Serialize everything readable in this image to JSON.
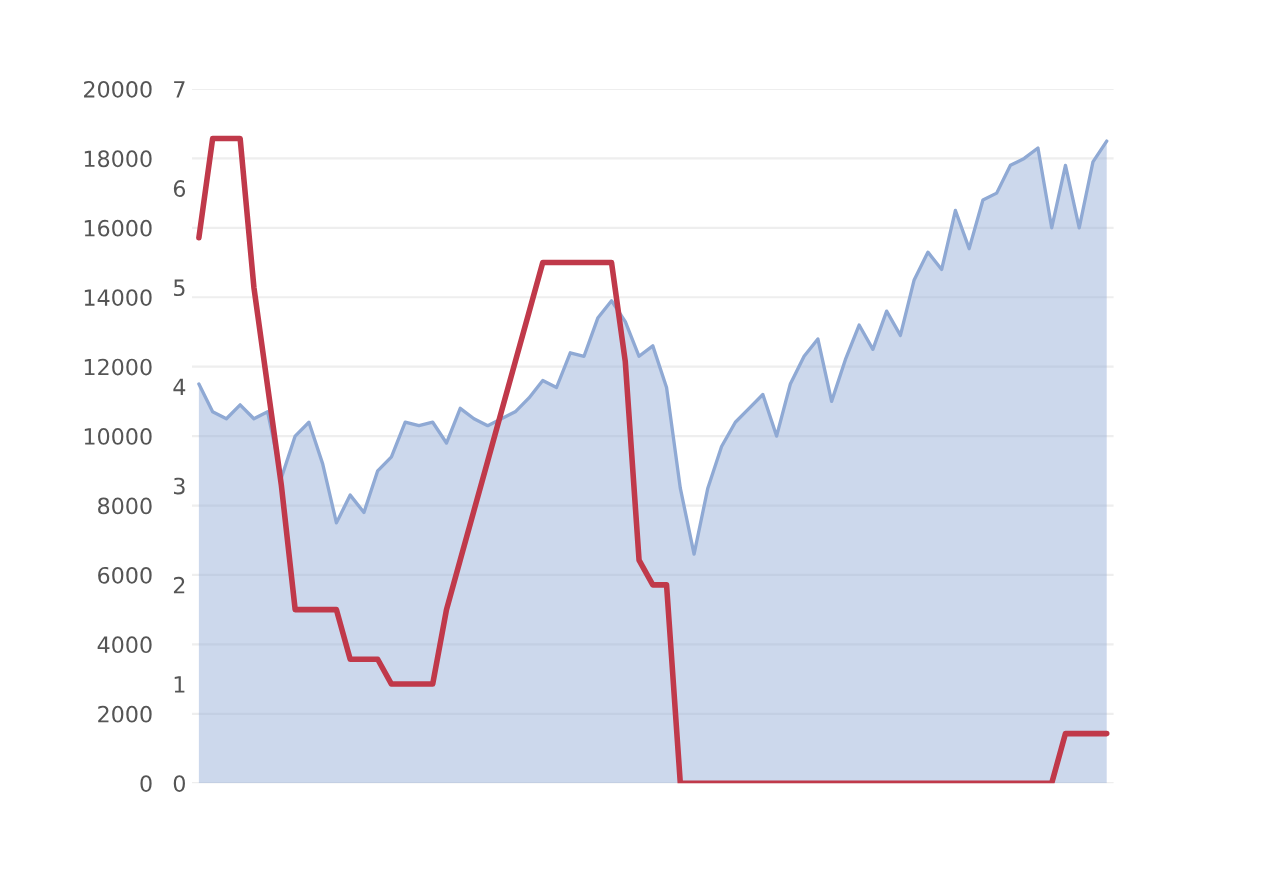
{
  "chart_data": {
    "type": "line",
    "grid": "y",
    "categories": [
      null,
      null,
      null,
      null,
      null,
      null,
      null,
      null,
      null,
      null,
      null,
      null,
      null,
      null,
      null,
      null,
      null,
      null,
      null,
      null,
      null,
      null,
      null,
      null,
      null,
      null,
      null,
      null,
      null,
      null,
      null,
      null,
      null,
      null,
      null,
      null,
      null,
      null,
      null,
      null,
      null,
      null,
      null,
      null,
      null,
      null,
      null,
      null,
      null,
      null,
      null,
      null,
      null,
      null,
      null,
      null,
      null,
      null,
      null,
      null,
      null,
      null,
      null,
      null,
      null,
      null,
      null
    ],
    "ylim": [
      0,
      20000
    ],
    "yticks": [
      0,
      2000,
      4000,
      6000,
      8000,
      10000,
      12000,
      14000,
      16000,
      18000,
      20000
    ],
    "y2lim": [
      0,
      7
    ],
    "y2ticks": [
      0,
      1,
      2,
      3,
      4,
      5,
      6,
      7
    ],
    "series": [
      {
        "type": "area",
        "color": "#8fa9d4",
        "values": [
          11500,
          10700,
          10500,
          10900,
          10500,
          10700,
          8800,
          10000,
          10400,
          9200,
          7500,
          8300,
          7800,
          9000,
          9400,
          10400,
          10300,
          10400,
          9800,
          10800,
          10500,
          10300,
          10500,
          10700,
          11100,
          11600,
          11400,
          12400,
          12300,
          13400,
          13900,
          13300,
          12300,
          12600,
          11400,
          8500,
          6600,
          8500,
          9700,
          10400,
          10800,
          11200,
          10000,
          11500,
          12300,
          12800,
          11000,
          12200,
          13200,
          12500,
          13600,
          12900,
          14500,
          15300,
          14800,
          16500,
          15400,
          16800,
          17000,
          17800,
          18000,
          18300,
          16000,
          17800,
          16000,
          17900,
          18500
        ]
      },
      {
        "axis": "y2",
        "color": "#c0394a",
        "values": [
          5.5,
          6.5,
          6.5,
          6.5,
          5,
          4,
          3,
          1.75,
          1.75,
          1.75,
          1.75,
          1.25,
          1.25,
          1.25,
          1,
          1,
          1,
          1,
          1.75,
          2.25,
          2.75,
          3.25,
          3.75,
          4.25,
          4.75,
          5.25,
          5.25,
          5.25,
          5.25,
          5.25,
          5.25,
          4.25,
          2.25,
          2,
          2,
          0,
          0,
          0,
          0,
          0,
          0,
          0,
          0,
          0,
          0,
          0,
          0,
          0,
          0,
          0,
          0,
          0,
          0,
          0,
          0,
          0,
          0,
          0,
          0,
          0,
          0,
          0,
          0,
          0.5,
          0.5,
          0.5,
          0.5
        ]
      }
    ]
  }
}
